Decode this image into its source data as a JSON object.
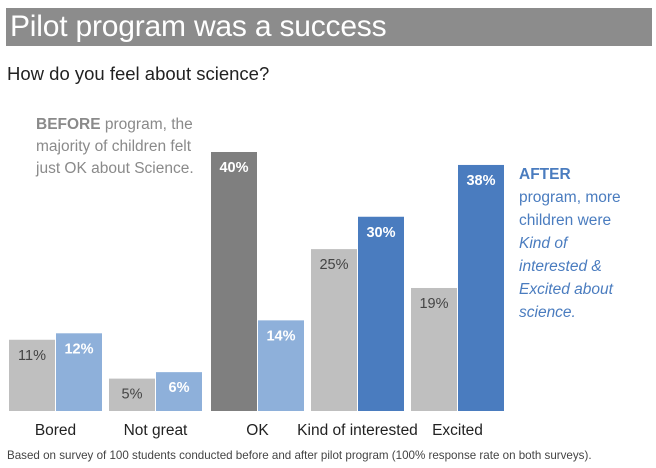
{
  "title": "Pilot program was a success",
  "subtitle": "How do you feel about science?",
  "annotations": {
    "before": {
      "bold": "BEFORE",
      "text": " program, the majority of children felt just OK about Science."
    },
    "after": {
      "bold": "AFTER",
      "line1": "program, more children were ",
      "italic": "Kind of interested & Excited about science."
    }
  },
  "footnote": "Based on survey of 100 students conducted before and after pilot program (100% response rate on both surveys).",
  "colors": {
    "before": "#bfbfbf",
    "before_highlight": "#7f7f7f",
    "after": "#8eb0da",
    "after_highlight": "#4a7cbf",
    "label_dark": "#444444",
    "label_light": "#ffffff"
  },
  "chart_data": {
    "type": "bar",
    "categories": [
      "Bored",
      "Not great",
      "OK",
      "Kind of interested",
      "Excited"
    ],
    "series": [
      {
        "values": [
          11,
          5,
          40,
          25,
          19
        ],
        "labels": [
          "11%",
          "5%",
          "40%",
          "25%",
          "19%"
        ]
      },
      {
        "values": [
          12,
          6,
          14,
          30,
          38
        ],
        "labels": [
          "12%",
          "6%",
          "14%",
          "30%",
          "38%"
        ]
      }
    ],
    "highlight": {
      "0": [
        2
      ],
      "1": [
        3,
        4
      ]
    },
    "ylim": [
      0,
      40
    ],
    "grid": false,
    "legend": "none"
  }
}
